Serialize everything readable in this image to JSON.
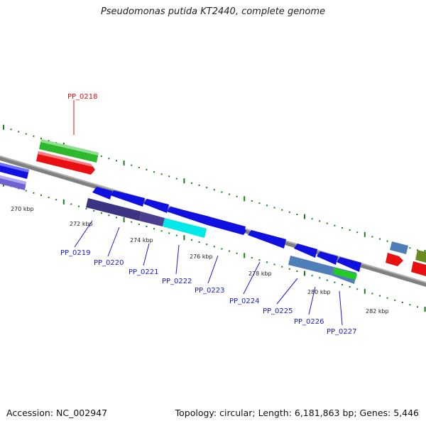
{
  "title": "Pseudomonas putida KT2440, complete genome",
  "footer": {
    "accession": "Accession: NC_002947",
    "summary": "Topology: circular; Length: 6,181,863 bp; Genes: 5,446"
  },
  "colors": {
    "backbone": "#808080",
    "tick": "#1e7d1e",
    "gene_label": "#1a1ad6",
    "highlight_label": "#e01010"
  },
  "scale_labels": [
    "270 kbp",
    "272 kbp",
    "274 kbp",
    "276 kbp",
    "278 kbp",
    "280 kbp",
    "282 kbp"
  ],
  "gene_labels": [
    {
      "id": "PP_0218",
      "highlight": true
    },
    {
      "id": "PP_0219",
      "highlight": false
    },
    {
      "id": "PP_0220",
      "highlight": false
    },
    {
      "id": "PP_0221",
      "highlight": false
    },
    {
      "id": "PP_0222",
      "highlight": false
    },
    {
      "id": "PP_0223",
      "highlight": false
    },
    {
      "id": "PP_0224",
      "highlight": false
    },
    {
      "id": "PP_0225",
      "highlight": false
    },
    {
      "id": "PP_0226",
      "highlight": false
    },
    {
      "id": "PP_0227",
      "highlight": false
    }
  ]
}
